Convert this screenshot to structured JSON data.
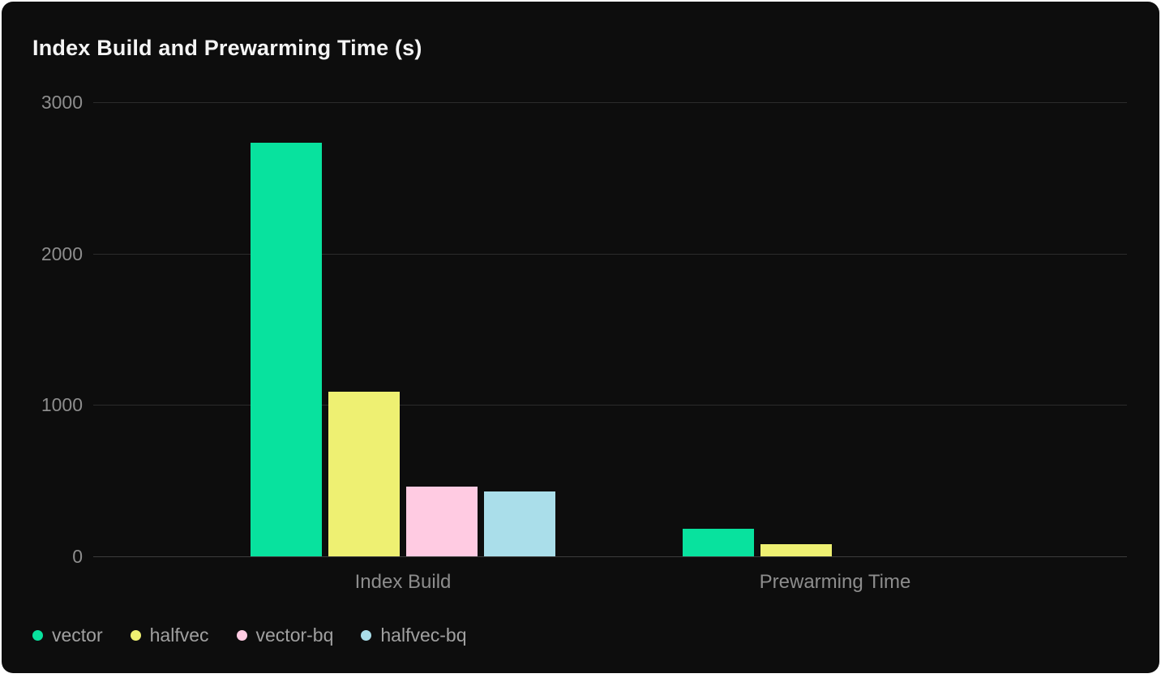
{
  "card": {
    "background": "#0d0d0d",
    "page_background": "#ffffff"
  },
  "chart_data": {
    "type": "bar",
    "title": "Index Build and Prewarming Time (s)",
    "categories": [
      "Index Build",
      "Prewarming Time"
    ],
    "series": [
      {
        "name": "vector",
        "color": "#08e29e",
        "values": [
          2730,
          180
        ]
      },
      {
        "name": "halfvec",
        "color": "#eef072",
        "values": [
          1090,
          80
        ]
      },
      {
        "name": "vector-bq",
        "color": "#ffcbe2",
        "values": [
          460,
          0
        ]
      },
      {
        "name": "halfvec-bq",
        "color": "#aadeea",
        "values": [
          430,
          0
        ]
      }
    ],
    "xlabel": "",
    "ylabel": "",
    "ylim": [
      0,
      3000
    ],
    "yticks": [
      0,
      1000,
      2000,
      3000
    ],
    "grid": true,
    "legend_position": "bottom",
    "colors": {
      "gridline": "#2b2b2b",
      "zero_line": "#3c3c3c",
      "tick_label": "#8d8d8d",
      "legend_label": "#a0a0a0",
      "title": "#f4f4f4"
    }
  }
}
